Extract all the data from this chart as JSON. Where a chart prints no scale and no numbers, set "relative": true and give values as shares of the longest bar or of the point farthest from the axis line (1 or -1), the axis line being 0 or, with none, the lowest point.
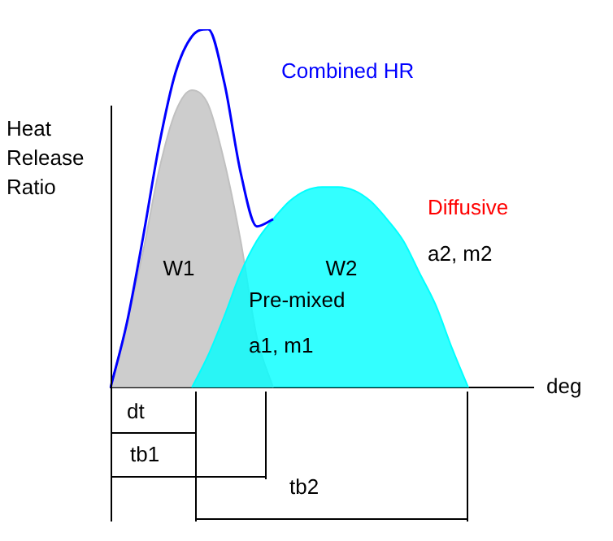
{
  "chart_data": {
    "type": "area",
    "relative": true,
    "xlabel": "deg",
    "ylabel": "Heat Release Ratio",
    "legend": false,
    "grid": false,
    "marker": "none",
    "categories": [
      null,
      null,
      null,
      null,
      null,
      null,
      null,
      null,
      null,
      null,
      null,
      null,
      null,
      null,
      null,
      null,
      null,
      null,
      null,
      null,
      null,
      null,
      null,
      null,
      null,
      null,
      null
    ],
    "series": [
      {
        "name": "Pre-mixed",
        "type": "area",
        "color": "#c0c0c0",
        "values": [
          0,
          0.18,
          0.38,
          0.61,
          0.77,
          0.83,
          0.79,
          0.63,
          0.41,
          0.14,
          0,
          null,
          null,
          null,
          null,
          null,
          null,
          null,
          null,
          null,
          null,
          null,
          null,
          null,
          null,
          null,
          null
        ]
      },
      {
        "name": "Diffusive",
        "type": "area",
        "color": "#00ffff",
        "values": [
          null,
          null,
          null,
          null,
          null,
          0,
          0.09,
          0.2,
          0.32,
          0.41,
          0.47,
          0.52,
          0.55,
          0.56,
          0.56,
          0.55,
          0.52,
          0.47,
          0.41,
          0.32,
          0.23,
          0.11,
          0,
          null,
          null,
          null,
          null
        ]
      },
      {
        "name": "Combined HR",
        "type": "line",
        "color": "#0000ff",
        "values": [
          0,
          0.18,
          0.42,
          0.68,
          0.88,
          0.98,
          1,
          0.85,
          0.6,
          0.45,
          0.47,
          null,
          null,
          null,
          null,
          null,
          null,
          null,
          null,
          null,
          null,
          null,
          null,
          null,
          null,
          null,
          null
        ]
      }
    ],
    "annotations": [
      "W1",
      "W2",
      "a1, m1",
      "a2, m2",
      "dt",
      "tb1",
      "tb2"
    ]
  }
}
